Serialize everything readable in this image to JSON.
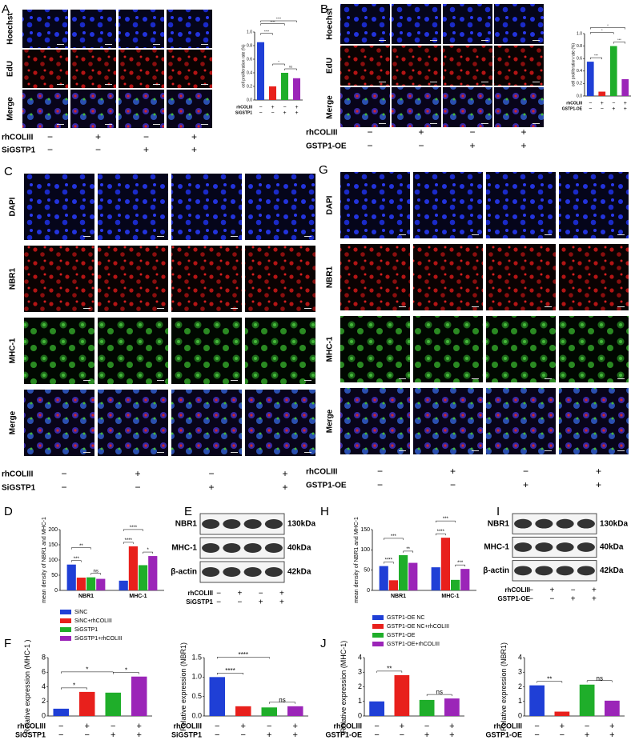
{
  "panel_labels": [
    "A",
    "B",
    "C",
    "G",
    "D",
    "E",
    "H",
    "I",
    "F",
    "J"
  ],
  "image_panels": [
    {
      "rows": [
        "Hoechst",
        "EdU",
        "Merge"
      ],
      "conditions": [
        {
          "name": "rhCOLIII",
          "signs": [
            "−",
            "+",
            "−",
            "+"
          ]
        },
        {
          "name": "SiGSTP1",
          "signs": [
            "−",
            "−",
            "+",
            "+"
          ]
        }
      ]
    },
    {
      "rows": [
        "Hoechst",
        "EdU",
        "Merge"
      ],
      "conditions": [
        {
          "name": "rhCOLIII",
          "signs": [
            "−",
            "+",
            "−",
            "+"
          ]
        },
        {
          "name": "GSTP1-OE",
          "signs": [
            "−",
            "−",
            "+",
            "+"
          ]
        }
      ]
    },
    {
      "rows": [
        "DAPI",
        "NBR1",
        "MHC-1",
        "Merge"
      ],
      "conditions": [
        {
          "name": "rhCOLIII",
          "signs": [
            "−",
            "+",
            "−",
            "+"
          ]
        },
        {
          "name": "SiGSTP1",
          "signs": [
            "−",
            "−",
            "+",
            "+"
          ]
        }
      ]
    },
    {
      "rows": [
        "DAPI",
        "NBR1",
        "MHC-1",
        "Merge"
      ],
      "conditions": [
        {
          "name": "rhCOLIII",
          "signs": [
            "−",
            "+",
            "−",
            "+"
          ]
        },
        {
          "name": "GSTP1-OE",
          "signs": [
            "−",
            "−",
            "+",
            "+"
          ]
        }
      ]
    }
  ],
  "blots": [
    {
      "rows": [
        "NBR1",
        "MHC-1",
        "β-actin"
      ],
      "sizes": [
        "130kDa",
        "40kDa",
        "42kDa"
      ],
      "conditions": [
        {
          "name": "rhCOLIII",
          "signs": [
            "−",
            "+",
            "−",
            "+"
          ]
        },
        {
          "name": "SiGSTP1",
          "signs": [
            "−",
            "−",
            "+",
            "+"
          ]
        }
      ]
    },
    {
      "rows": [
        "NBR1",
        "MHC-1",
        "β-actin"
      ],
      "sizes": [
        "130kDa",
        "40kDa",
        "42kDa"
      ],
      "conditions": [
        {
          "name": "rhCOLIII",
          "signs": [
            "−",
            "+",
            "−",
            "+"
          ]
        },
        {
          "name": "GSTP1-OE",
          "signs": [
            "−",
            "−",
            "+",
            "+"
          ]
        }
      ]
    }
  ],
  "chart_data": [
    {
      "type": "bar",
      "ylabel": "cell proliferation rate (%)",
      "values": [
        0.85,
        0.2,
        0.4,
        0.32
      ],
      "colors": [
        "#1f3fd6",
        "#e8201c",
        "#1fae2a",
        "#9b25b8"
      ],
      "ylim": [
        0,
        1
      ],
      "yticks": [
        {
          "value": 0,
          "label": "0.0"
        },
        0.2,
        0.4,
        0.6,
        0.8,
        {
          "value": 1,
          "label": "1.0"
        }
      ],
      "conditions": [
        {
          "name": "rhCOLIII",
          "signs": [
            "−",
            "+",
            "−",
            "+"
          ]
        },
        {
          "name": "SiGSTP1",
          "signs": [
            "−",
            "−",
            "+",
            "+"
          ]
        }
      ],
      "annotations": [
        {
          "text": "****",
          "bars": [
            0,
            3
          ]
        },
        {
          "text": "****",
          "bars": [
            0,
            2
          ]
        },
        {
          "text": "****",
          "bars": [
            0,
            1
          ]
        },
        {
          "text": "*",
          "bars": [
            1,
            2
          ]
        },
        {
          "text": "ns",
          "bars": [
            2,
            3
          ]
        }
      ]
    },
    {
      "type": "bar",
      "ylabel": "cell proliferation rate (%)",
      "values": [
        0.55,
        0.07,
        0.8,
        0.27
      ],
      "colors": [
        "#1f3fd6",
        "#e8201c",
        "#1fae2a",
        "#9b25b8"
      ],
      "ylim": [
        0,
        1
      ],
      "yticks": [
        {
          "value": 0,
          "label": "0.0"
        },
        0.2,
        0.4,
        0.6,
        0.8,
        {
          "value": 1,
          "label": "1.0"
        }
      ],
      "conditions": [
        {
          "name": "rhCOLIII",
          "signs": [
            "−",
            "+",
            "−",
            "+"
          ]
        },
        {
          "name": "GSTP1-OE",
          "signs": [
            "−",
            "−",
            "+",
            "+"
          ]
        }
      ],
      "annotations": [
        {
          "text": "*",
          "bars": [
            0,
            3
          ]
        },
        {
          "text": "*",
          "bars": [
            0,
            2
          ]
        },
        {
          "text": "***",
          "bars": [
            0,
            1
          ]
        },
        {
          "text": "***",
          "bars": [
            2,
            3
          ]
        }
      ]
    },
    {
      "type": "grouped_bar",
      "ylabel": "mean density of NBR1 and MHC-1",
      "categories": [
        "NBR1",
        "MHC-1"
      ],
      "series": [
        {
          "name": "SiNC",
          "color": "#1f3fd6",
          "values": [
            85,
            32
          ]
        },
        {
          "name": "SiNC+rhCOLIII",
          "color": "#e8201c",
          "values": [
            42,
            145
          ]
        },
        {
          "name": "SiGSTP1",
          "color": "#1fae2a",
          "values": [
            43,
            83
          ]
        },
        {
          "name": "SiGSTP1+rhCOLIII",
          "color": "#9b25b8",
          "values": [
            38,
            113
          ]
        }
      ],
      "ylim": [
        0,
        200
      ],
      "yticks": [
        0,
        50,
        100,
        150,
        200
      ],
      "annotations": [
        {
          "text": "**",
          "bars": [
            0,
            2
          ]
        },
        {
          "text": "***",
          "bars": [
            0,
            1
          ]
        },
        {
          "text": "ns",
          "bars": [
            2,
            3
          ]
        },
        {
          "text": "****",
          "bars": [
            4,
            6
          ]
        },
        {
          "text": "****",
          "bars": [
            4,
            5
          ]
        },
        {
          "text": "*",
          "bars": [
            6,
            7
          ]
        }
      ]
    },
    {
      "type": "grouped_bar",
      "ylabel": "mean density of NBR1 and MHC-1",
      "categories": [
        "NBR1",
        "MHC-1"
      ],
      "series": [
        {
          "name": "GSTP1-OE NC",
          "color": "#1f3fd6",
          "values": [
            60,
            57
          ]
        },
        {
          "name": "GSTP1-OE NC+rhCOLIII",
          "color": "#e8201c",
          "values": [
            25,
            130
          ]
        },
        {
          "name": "GSTP1-OE",
          "color": "#1fae2a",
          "values": [
            87,
            26
          ]
        },
        {
          "name": "GSTP1-OE+rhCOLIII",
          "color": "#9b25b8",
          "values": [
            68,
            53
          ]
        }
      ],
      "ylim": [
        0,
        150
      ],
      "yticks": [
        0,
        50,
        100,
        150
      ],
      "annotations": [
        {
          "text": "***",
          "bars": [
            0,
            2
          ]
        },
        {
          "text": "****",
          "bars": [
            0,
            1
          ]
        },
        {
          "text": "**",
          "bars": [
            2,
            3
          ]
        },
        {
          "text": "***",
          "bars": [
            4,
            6
          ]
        },
        {
          "text": "****",
          "bars": [
            4,
            5
          ]
        },
        {
          "text": "***",
          "bars": [
            6,
            7
          ]
        }
      ]
    },
    {
      "type": "bar",
      "ylabel": "Relative expression (MHC-1 )",
      "values": [
        1,
        3.3,
        3.2,
        5.4
      ],
      "colors": [
        "#1f3fd6",
        "#e8201c",
        "#1fae2a",
        "#9b25b8"
      ],
      "ylim": [
        0,
        8
      ],
      "yticks": [
        0,
        2,
        4,
        6,
        8
      ],
      "conditions": [
        {
          "name": "rhCOLIII",
          "signs": [
            "−",
            "+",
            "−",
            "+"
          ]
        },
        {
          "name": "SiGSTP1",
          "signs": [
            "−",
            "−",
            "+",
            "+"
          ]
        }
      ],
      "annotations": [
        {
          "text": "*",
          "bars": [
            0,
            2
          ]
        },
        {
          "text": "*",
          "bars": [
            0,
            1
          ]
        },
        {
          "text": "*",
          "bars": [
            2,
            3
          ]
        }
      ]
    },
    {
      "type": "bar",
      "ylabel": "Relative expression (NBR1)",
      "values": [
        1,
        0.25,
        0.22,
        0.25
      ],
      "colors": [
        "#1f3fd6",
        "#e8201c",
        "#1fae2a",
        "#9b25b8"
      ],
      "ylim": [
        0,
        1.5
      ],
      "yticks": [
        {
          "value": 0,
          "label": "0.0"
        },
        0.5,
        {
          "value": 1,
          "label": "1.0"
        },
        1.5
      ],
      "conditions": [
        {
          "name": "rhCOLIII",
          "signs": [
            "−",
            "+",
            "−",
            "+"
          ]
        },
        {
          "name": "SiGSTP1",
          "signs": [
            "−",
            "−",
            "+",
            "+"
          ]
        }
      ],
      "annotations": [
        {
          "text": "****",
          "bars": [
            0,
            2
          ]
        },
        {
          "text": "****",
          "bars": [
            0,
            1
          ]
        },
        {
          "text": "ns",
          "bars": [
            2,
            3
          ]
        }
      ]
    },
    {
      "type": "bar",
      "ylabel": "Relative expression (MHC-1)",
      "values": [
        1,
        2.8,
        1.1,
        1.2
      ],
      "colors": [
        "#1f3fd6",
        "#e8201c",
        "#1fae2a",
        "#9b25b8"
      ],
      "ylim": [
        0,
        4
      ],
      "yticks": [
        0,
        1,
        2,
        3,
        4
      ],
      "conditions": [
        {
          "name": "rhCOLIII",
          "signs": [
            "−",
            "+",
            "−",
            "+"
          ]
        },
        {
          "name": "GSTP1-OE",
          "signs": [
            "−",
            "−",
            "+",
            "+"
          ]
        }
      ],
      "annotations": [
        {
          "text": "**",
          "bars": [
            0,
            1
          ]
        },
        {
          "text": "ns",
          "bars": [
            2,
            3
          ]
        }
      ]
    },
    {
      "type": "bar",
      "ylabel": "Relative expression (NBR1)",
      "values": [
        2.1,
        0.3,
        2.15,
        1.05
      ],
      "colors": [
        "#1f3fd6",
        "#e8201c",
        "#1fae2a",
        "#9b25b8"
      ],
      "ylim": [
        0,
        4
      ],
      "yticks": [
        0,
        1,
        2,
        3,
        4
      ],
      "conditions": [
        {
          "name": "rhCOLIII",
          "signs": [
            "−",
            "+",
            "−",
            "+"
          ]
        },
        {
          "name": "GSTP1-OE",
          "signs": [
            "−",
            "−",
            "+",
            "+"
          ]
        }
      ],
      "annotations": [
        {
          "text": "**",
          "bars": [
            0,
            1
          ]
        },
        {
          "text": "ns",
          "bars": [
            2,
            3
          ]
        }
      ]
    }
  ]
}
